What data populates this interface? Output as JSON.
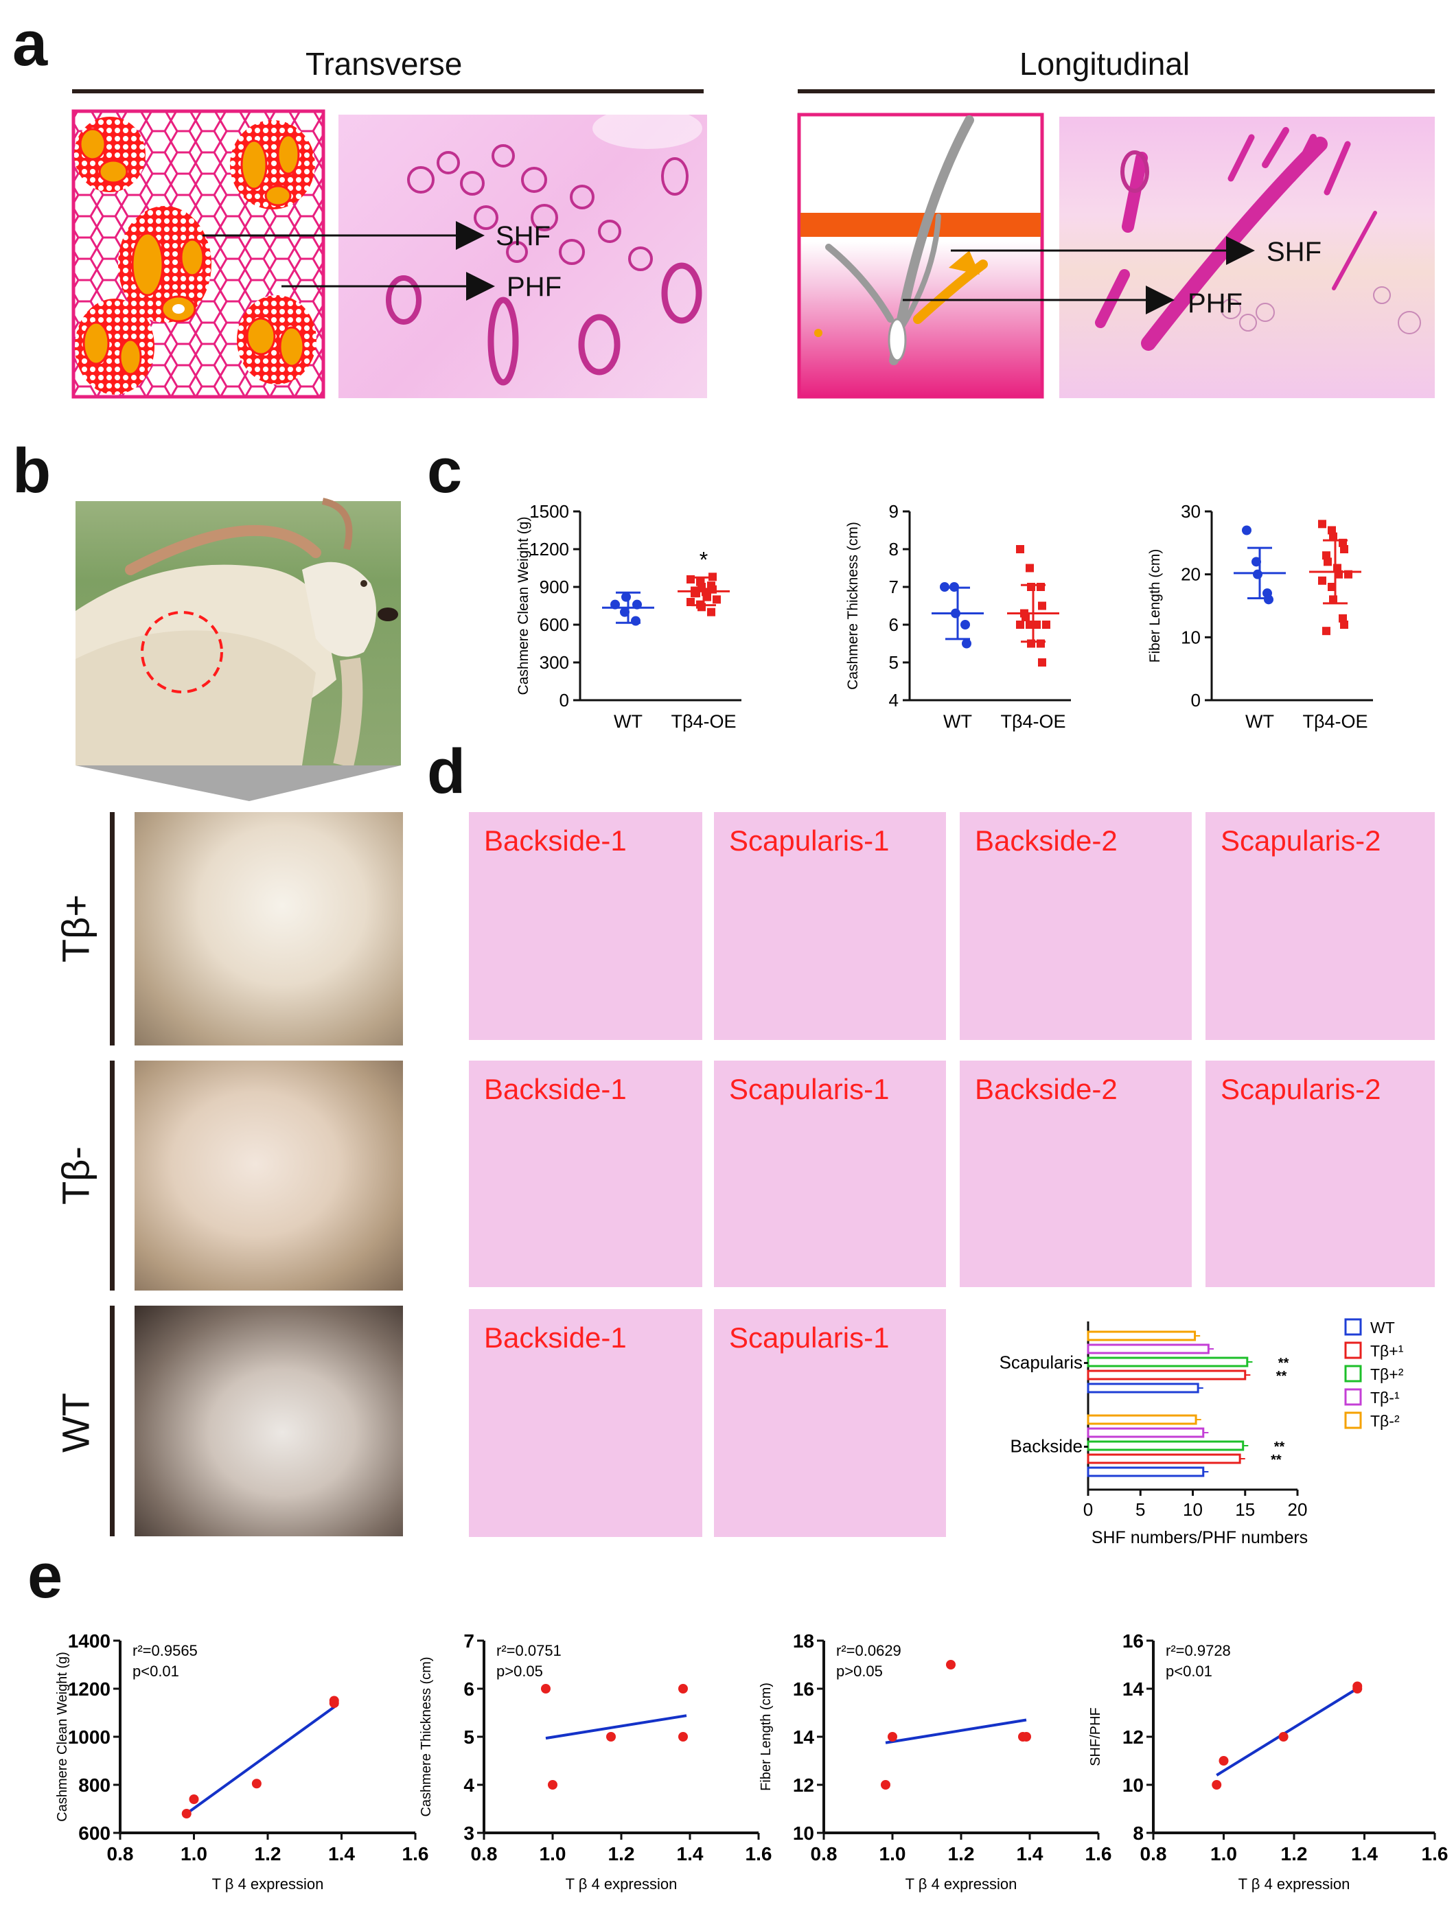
{
  "panels": {
    "a": "a",
    "b": "b",
    "c": "c",
    "d": "d",
    "e": "e"
  },
  "panel_a": {
    "transverse_title": "Transverse",
    "longitudinal_title": "Longitudinal",
    "shf": "SHF",
    "phf": "PHF"
  },
  "panel_b": {
    "rows": [
      "Tβ+",
      "Tβ-",
      "WT"
    ]
  },
  "panel_d": {
    "row1": [
      "Backside-1",
      "Scapularis-1",
      "Backside-2",
      "Scapularis-2"
    ],
    "row2": [
      "Backside-1",
      "Scapularis-1",
      "Backside-2",
      "Scapularis-2"
    ],
    "row3": [
      "Backside-1",
      "Scapularis-1"
    ]
  },
  "colors": {
    "wt": "#1f3fd6",
    "tb_plus": "#e8201e",
    "magenta": "#e8207f",
    "orange": "#f5a200",
    "green": "#1dbf2a",
    "purple": "#c43fd6",
    "fit": "#1432c8"
  },
  "chart_data": [
    {
      "id": "c1",
      "type": "scatter",
      "ylabel": "Cashmere Clean Weight (g)",
      "categories": [
        "WT",
        "Tβ4-OE"
      ],
      "ylim": [
        0,
        1500
      ],
      "yticks": [
        0,
        300,
        600,
        900,
        1200,
        1500
      ],
      "groups": [
        {
          "name": "WT",
          "mean": 735,
          "sd": 120,
          "points": [
            760,
            700,
            820,
            630,
            760
          ]
        },
        {
          "name": "Tβ4-OE",
          "mean": 865,
          "sd": 110,
          "points": [
            960,
            940,
            900,
            910,
            880,
            870,
            850,
            860,
            820,
            800,
            780,
            760,
            740,
            700,
            980,
            850
          ]
        }
      ],
      "annotation": "*"
    },
    {
      "id": "c2",
      "type": "scatter",
      "ylabel": "Cashmere Thickness (cm)",
      "categories": [
        "WT",
        "Tβ4-OE"
      ],
      "ylim": [
        4,
        9
      ],
      "yticks": [
        4,
        5,
        6,
        7,
        8,
        9
      ],
      "groups": [
        {
          "name": "WT",
          "mean": 6.3,
          "sd": 0.68,
          "points": [
            7,
            7,
            6.3,
            6,
            5.5
          ]
        },
        {
          "name": "Tβ4-OE",
          "mean": 6.3,
          "sd": 0.75,
          "points": [
            8,
            7.5,
            7,
            7,
            6.5,
            6.3,
            6.2,
            6,
            6,
            6,
            6,
            6,
            5.5,
            5.5,
            5
          ]
        }
      ]
    },
    {
      "id": "c3",
      "type": "scatter",
      "ylabel": "Fiber Length (cm)",
      "categories": [
        "WT",
        "Tβ4-OE"
      ],
      "ylim": [
        0,
        30
      ],
      "yticks": [
        0,
        10,
        20,
        30
      ],
      "groups": [
        {
          "name": "WT",
          "mean": 20.2,
          "sd": 4,
          "points": [
            27,
            22,
            20,
            17,
            16
          ]
        },
        {
          "name": "Tβ4-OE",
          "mean": 20.4,
          "sd": 5,
          "points": [
            28,
            27,
            26,
            25,
            24,
            23,
            22,
            21,
            20,
            20,
            19,
            18,
            16,
            13,
            12,
            11
          ]
        }
      ]
    },
    {
      "id": "d_bar",
      "type": "bar",
      "orientation": "horizontal",
      "xlabel": "SHF numbers/PHF numbers",
      "xlim": [
        0,
        20
      ],
      "xticks": [
        0,
        5,
        10,
        15,
        20
      ],
      "categories": [
        "Scapularis",
        "Backside"
      ],
      "series": [
        {
          "name": "WT",
          "values": [
            10.5,
            11
          ]
        },
        {
          "name": "Tβ+¹",
          "values": [
            15,
            14.5
          ]
        },
        {
          "name": "Tβ+²",
          "values": [
            15.2,
            14.8
          ]
        },
        {
          "name": "Tβ-¹",
          "values": [
            11.5,
            11
          ]
        },
        {
          "name": "Tβ-²",
          "values": [
            10.2,
            10.3
          ]
        }
      ],
      "significance": [
        "**",
        "**",
        "**",
        "**"
      ]
    },
    {
      "id": "e1",
      "type": "scatter",
      "xlabel": "T β 4 expression",
      "ylabel": "Cashmere Clean Weight (g)",
      "xlim": [
        0.8,
        1.6
      ],
      "xticks": [
        0.8,
        1.0,
        1.2,
        1.4,
        1.6
      ],
      "ylim": [
        600,
        1400
      ],
      "yticks": [
        600,
        800,
        1000,
        1200,
        1400
      ],
      "points": [
        [
          0.98,
          680
        ],
        [
          1.0,
          740
        ],
        [
          1.17,
          805
        ],
        [
          1.38,
          1150
        ],
        [
          1.38,
          1140
        ]
      ],
      "fit": [
        [
          0.98,
          680
        ],
        [
          1.39,
          1135
        ]
      ],
      "r2": "r²=0.9565",
      "p": "p<0.01"
    },
    {
      "id": "e2",
      "type": "scatter",
      "xlabel": "T β 4 expression",
      "ylabel": "Cashmere Thickness (cm)",
      "xlim": [
        0.8,
        1.6
      ],
      "xticks": [
        0.8,
        1.0,
        1.2,
        1.4,
        1.6
      ],
      "ylim": [
        3,
        7
      ],
      "yticks": [
        3,
        4,
        5,
        6,
        7
      ],
      "points": [
        [
          0.98,
          6
        ],
        [
          1.0,
          4
        ],
        [
          1.17,
          5
        ],
        [
          1.38,
          6
        ],
        [
          1.38,
          5
        ]
      ],
      "fit": [
        [
          0.98,
          4.97
        ],
        [
          1.39,
          5.44
        ]
      ],
      "r2": "r²=0.0751",
      "p": "p>0.05"
    },
    {
      "id": "e3",
      "type": "scatter",
      "xlabel": "T β 4 expression",
      "ylabel": "Fiber Length (cm)",
      "xlim": [
        0.8,
        1.6
      ],
      "xticks": [
        0.8,
        1.0,
        1.2,
        1.4,
        1.6
      ],
      "ylim": [
        10,
        18
      ],
      "yticks": [
        10,
        12,
        14,
        16,
        18
      ],
      "points": [
        [
          0.98,
          12
        ],
        [
          1.0,
          14
        ],
        [
          1.17,
          17
        ],
        [
          1.38,
          14
        ],
        [
          1.39,
          14
        ]
      ],
      "fit": [
        [
          0.98,
          13.75
        ],
        [
          1.39,
          14.7
        ]
      ],
      "r2": "r²=0.0629",
      "p": "p>0.05"
    },
    {
      "id": "e4",
      "type": "scatter",
      "xlabel": "T β 4 expression",
      "ylabel": "SHF/PHF",
      "xlim": [
        0.8,
        1.6
      ],
      "xticks": [
        0.8,
        1.0,
        1.2,
        1.4,
        1.6
      ],
      "ylim": [
        8,
        16
      ],
      "yticks": [
        8,
        10,
        12,
        14,
        16
      ],
      "points": [
        [
          0.98,
          10
        ],
        [
          1.0,
          11
        ],
        [
          1.17,
          12
        ],
        [
          1.38,
          14
        ],
        [
          1.38,
          14.1
        ]
      ],
      "fit": [
        [
          0.98,
          10.4
        ],
        [
          1.39,
          14.1
        ]
      ],
      "r2": "r²=0.9728",
      "p": "p<0.01"
    }
  ]
}
